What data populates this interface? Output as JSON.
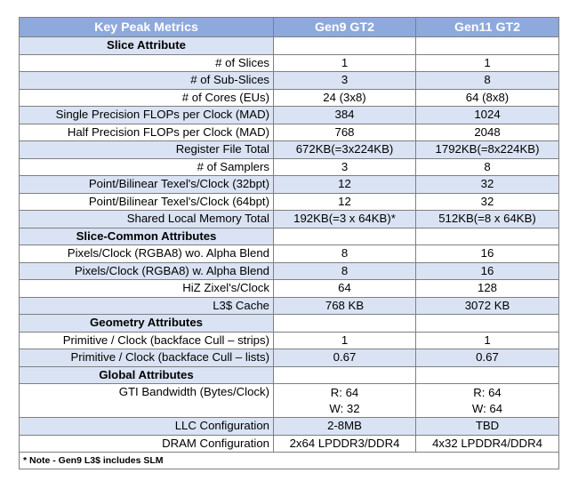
{
  "header": {
    "col1": "Key Peak Metrics",
    "col2": "Gen9 GT2",
    "col3": "Gen11 GT2"
  },
  "sections": [
    {
      "title": "Slice Attribute",
      "rows": [
        {
          "label": "# of Slices",
          "gen9": [
            "1"
          ],
          "gen11": [
            "1"
          ]
        },
        {
          "label": "# of Sub-Slices",
          "gen9": [
            "3"
          ],
          "gen11": [
            "8"
          ]
        },
        {
          "label": "# of Cores (EUs)",
          "gen9": [
            "24 (3x8)"
          ],
          "gen11": [
            "64 (8x8)"
          ]
        },
        {
          "label": "Single Precision FLOPs per Clock (MAD)",
          "gen9": [
            "384"
          ],
          "gen11": [
            "1024"
          ]
        },
        {
          "label": "Half Precision FLOPs per Clock (MAD)",
          "gen9": [
            "768"
          ],
          "gen11": [
            "2048"
          ]
        },
        {
          "label": "Register File Total",
          "gen9": [
            "672KB(=3x224KB)"
          ],
          "gen11": [
            "1792KB(=8x224KB)"
          ]
        },
        {
          "label": "# of Samplers",
          "gen9": [
            "3"
          ],
          "gen11": [
            "8"
          ]
        },
        {
          "label": "Point/Bilinear Texel's/Clock (32bpt)",
          "gen9": [
            "12"
          ],
          "gen11": [
            "32"
          ]
        },
        {
          "label": "Point/Bilinear Texel's/Clock (64bpt)",
          "gen9": [
            "12"
          ],
          "gen11": [
            "32"
          ]
        },
        {
          "label": "Shared Local Memory Total",
          "gen9": [
            "192KB(=3 x 64KB)*"
          ],
          "gen11": [
            "512KB(=8 x 64KB)"
          ]
        }
      ]
    },
    {
      "title": "Slice-Common Attributes",
      "rows": [
        {
          "label": "Pixels/Clock (RGBA8) wo. Alpha Blend",
          "gen9": [
            "8"
          ],
          "gen11": [
            "16"
          ]
        },
        {
          "label": "Pixels/Clock (RGBA8) w. Alpha Blend",
          "gen9": [
            "8"
          ],
          "gen11": [
            "16"
          ]
        },
        {
          "label": "HiZ Zixel's/Clock",
          "gen9": [
            "64"
          ],
          "gen11": [
            "128"
          ]
        },
        {
          "label": "L3$ Cache",
          "gen9": [
            "768 KB"
          ],
          "gen11": [
            "3072 KB"
          ]
        }
      ]
    },
    {
      "title": "Geometry Attributes",
      "rows": [
        {
          "label": "Primitive / Clock (backface Cull – strips)",
          "gen9": [
            "1"
          ],
          "gen11": [
            "1"
          ]
        },
        {
          "label": "Primitive / Clock (backface Cull – lists)",
          "gen9": [
            "0.67"
          ],
          "gen11": [
            "0.67"
          ]
        }
      ]
    },
    {
      "title": "Global Attributes",
      "rows": [
        {
          "label": "GTI Bandwidth (Bytes/Clock)",
          "gen9": [
            "R: 64",
            "W: 32"
          ],
          "gen11": [
            "R: 64",
            "W: 64"
          ]
        },
        {
          "label": "LLC Configuration",
          "gen9": [
            "2-8MB"
          ],
          "gen11": [
            "TBD"
          ]
        },
        {
          "label": "DRAM Configuration",
          "gen9": [
            "2x64 LPDDR3/DDR4"
          ],
          "gen11": [
            "4x32 LPDDR4/DDR4"
          ]
        }
      ]
    }
  ],
  "note": "* Note - Gen9 L3$ includes SLM"
}
